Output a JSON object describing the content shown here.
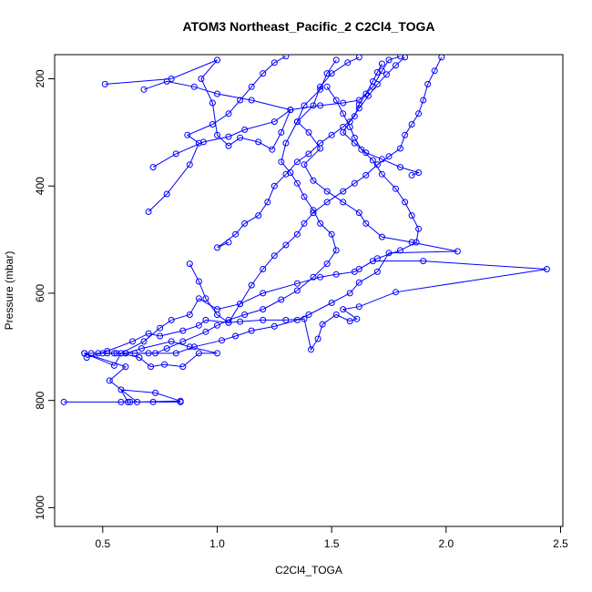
{
  "chart_data": {
    "type": "line",
    "title": "ATOM3 Northeast_Pacific_2 C2Cl4_TOGA",
    "xlabel": "C2Cl4_TOGA",
    "ylabel": "Pressure (mbar)",
    "xlim": [
      0.29,
      2.51
    ],
    "ylim": [
      1035,
      155
    ],
    "y_reversed": true,
    "x_ticks": [
      0.5,
      1.0,
      1.5,
      2.0,
      2.5
    ],
    "x_tick_labels": [
      "0.5",
      "1.0",
      "1.5",
      "2.0",
      "2.5"
    ],
    "y_ticks": [
      200,
      400,
      600,
      800,
      1000
    ],
    "y_tick_labels": [
      "200",
      "400",
      "600",
      "800",
      "1000"
    ],
    "grid": false,
    "legend": "none",
    "color": "#0000ff",
    "series": [
      {
        "points": [
          [
            0.33,
            803
          ],
          [
            0.58,
            803
          ],
          [
            0.62,
            803
          ],
          [
            0.72,
            803
          ],
          [
            0.84,
            803
          ],
          [
            0.61,
            803
          ],
          [
            0.58,
            780
          ],
          [
            0.73,
            786
          ],
          [
            0.84,
            801
          ],
          [
            0.65,
            803
          ],
          [
            0.53,
            763
          ],
          [
            0.6,
            737
          ],
          [
            0.42,
            712
          ],
          [
            0.55,
            735
          ],
          [
            0.58,
            712
          ],
          [
            0.66,
            720
          ],
          [
            0.71,
            737
          ],
          [
            0.77,
            733
          ],
          [
            0.85,
            737
          ],
          [
            0.92,
            712
          ],
          [
            1.0,
            712
          ],
          [
            0.88,
            700
          ],
          [
            0.8,
            690
          ],
          [
            0.67,
            703
          ],
          [
            0.6,
            712
          ],
          [
            0.55,
            712
          ],
          [
            0.48,
            712
          ],
          [
            0.42,
            712
          ],
          [
            0.43,
            720
          ],
          [
            0.52,
            708
          ],
          [
            0.63,
            690
          ],
          [
            0.7,
            675
          ],
          [
            0.75,
            680
          ],
          [
            0.85,
            670
          ],
          [
            0.92,
            660
          ],
          [
            0.95,
            650
          ],
          [
            1.05,
            655
          ],
          [
            1.1,
            653
          ],
          [
            1.2,
            650
          ],
          [
            1.3,
            650
          ],
          [
            1.38,
            648
          ],
          [
            1.41,
            705
          ],
          [
            1.44,
            685
          ],
          [
            1.46,
            658
          ],
          [
            1.52,
            640
          ],
          [
            1.58,
            652
          ],
          [
            1.61,
            648
          ],
          [
            1.55,
            630
          ],
          [
            1.62,
            625
          ],
          [
            1.78,
            598
          ],
          [
            2.44,
            555
          ],
          [
            1.9,
            540
          ],
          [
            1.68,
            540
          ],
          [
            1.6,
            560
          ],
          [
            1.52,
            565
          ],
          [
            1.45,
            570
          ],
          [
            1.35,
            582
          ],
          [
            1.2,
            600
          ],
          [
            1.1,
            620
          ],
          [
            1.0,
            630
          ],
          [
            0.92,
            610
          ],
          [
            0.88,
            640
          ],
          [
            0.8,
            650
          ],
          [
            0.75,
            665
          ],
          [
            0.68,
            690
          ],
          [
            0.58,
            712
          ],
          [
            0.5,
            712
          ],
          [
            0.45,
            712
          ]
        ]
      },
      {
        "points": [
          [
            0.6,
            712
          ],
          [
            0.7,
            712
          ],
          [
            0.82,
            712
          ],
          [
            0.9,
            700
          ],
          [
            1.02,
            688
          ],
          [
            1.08,
            680
          ],
          [
            1.15,
            670
          ],
          [
            1.25,
            662
          ],
          [
            1.35,
            650
          ],
          [
            1.4,
            640
          ],
          [
            1.5,
            618
          ],
          [
            1.58,
            600
          ],
          [
            1.62,
            580
          ],
          [
            1.7,
            560
          ],
          [
            1.75,
            525
          ],
          [
            2.05,
            522
          ],
          [
            1.85,
            505
          ],
          [
            1.72,
            495
          ],
          [
            1.65,
            470
          ],
          [
            1.62,
            450
          ],
          [
            1.55,
            430
          ],
          [
            1.48,
            410
          ],
          [
            1.42,
            390
          ],
          [
            1.38,
            360
          ],
          [
            1.45,
            330
          ],
          [
            1.4,
            300
          ],
          [
            1.35,
            280
          ],
          [
            1.42,
            250
          ],
          [
            1.45,
            215
          ],
          [
            1.5,
            190
          ],
          [
            1.57,
            170
          ],
          [
            1.62,
            160
          ]
        ]
      },
      {
        "points": [
          [
            0.52,
            712
          ],
          [
            0.56,
            712
          ],
          [
            0.64,
            712
          ],
          [
            0.73,
            712
          ],
          [
            0.78,
            703
          ],
          [
            0.85,
            690
          ],
          [
            0.95,
            672
          ],
          [
            1.0,
            660
          ],
          [
            1.05,
            650
          ],
          [
            1.12,
            640
          ],
          [
            1.2,
            630
          ],
          [
            1.28,
            612
          ],
          [
            1.35,
            595
          ],
          [
            1.42,
            570
          ],
          [
            1.48,
            545
          ],
          [
            1.52,
            520
          ],
          [
            1.5,
            490
          ],
          [
            1.45,
            470
          ],
          [
            1.42,
            445
          ],
          [
            1.38,
            420
          ],
          [
            1.35,
            395
          ],
          [
            1.32,
            375
          ],
          [
            1.28,
            355
          ],
          [
            1.3,
            320
          ],
          [
            1.35,
            280
          ],
          [
            1.38,
            250
          ],
          [
            1.45,
            220
          ],
          [
            1.48,
            190
          ],
          [
            1.52,
            165
          ]
        ]
      },
      {
        "points": [
          [
            0.7,
            448
          ],
          [
            0.78,
            415
          ],
          [
            0.88,
            360
          ],
          [
            0.92,
            320
          ],
          [
            0.87,
            305
          ],
          [
            0.98,
            285
          ],
          [
            1.05,
            265
          ],
          [
            1.1,
            240
          ],
          [
            1.15,
            215
          ],
          [
            1.2,
            190
          ],
          [
            1.25,
            170
          ],
          [
            1.3,
            158
          ]
        ]
      },
      {
        "points": [
          [
            0.51,
            210
          ],
          [
            0.8,
            200
          ],
          [
            1.0,
            165
          ],
          [
            0.93,
            200
          ],
          [
            0.98,
            245
          ],
          [
            1.0,
            305
          ],
          [
            1.05,
            325
          ],
          [
            1.1,
            310
          ],
          [
            1.18,
            318
          ],
          [
            1.24,
            332
          ],
          [
            1.28,
            300
          ],
          [
            1.32,
            258
          ],
          [
            1.15,
            240
          ],
          [
            1.0,
            228
          ],
          [
            0.9,
            215
          ],
          [
            0.78,
            205
          ],
          [
            0.68,
            220
          ]
        ]
      },
      {
        "points": [
          [
            0.72,
            365
          ],
          [
            0.82,
            340
          ],
          [
            0.94,
            318
          ],
          [
            1.05,
            308
          ],
          [
            1.12,
            295
          ],
          [
            1.25,
            280
          ],
          [
            1.32,
            258
          ],
          [
            1.45,
            250
          ],
          [
            1.55,
            245
          ],
          [
            1.62,
            240
          ],
          [
            1.68,
            215
          ],
          [
            1.72,
            185
          ],
          [
            1.75,
            165
          ],
          [
            1.8,
            158
          ]
        ]
      },
      {
        "points": [
          [
            0.88,
            545
          ],
          [
            0.92,
            578
          ],
          [
            0.95,
            610
          ],
          [
            1.0,
            640
          ],
          [
            1.05,
            655
          ],
          [
            1.1,
            620
          ],
          [
            1.15,
            585
          ],
          [
            1.2,
            555
          ],
          [
            1.25,
            530
          ],
          [
            1.3,
            510
          ],
          [
            1.35,
            490
          ],
          [
            1.38,
            470
          ],
          [
            1.42,
            450
          ],
          [
            1.48,
            430
          ],
          [
            1.55,
            410
          ],
          [
            1.6,
            395
          ],
          [
            1.65,
            380
          ],
          [
            1.7,
            360
          ],
          [
            1.75,
            345
          ],
          [
            1.8,
            330
          ],
          [
            1.82,
            305
          ],
          [
            1.85,
            285
          ],
          [
            1.88,
            265
          ],
          [
            1.9,
            240
          ],
          [
            1.92,
            210
          ],
          [
            1.95,
            185
          ],
          [
            1.98,
            160
          ]
        ]
      },
      {
        "points": [
          [
            1.05,
            505
          ],
          [
            1.0,
            515
          ],
          [
            1.08,
            490
          ],
          [
            1.12,
            470
          ],
          [
            1.18,
            455
          ],
          [
            1.22,
            430
          ],
          [
            1.25,
            400
          ],
          [
            1.3,
            378
          ],
          [
            1.35,
            355
          ],
          [
            1.4,
            340
          ],
          [
            1.45,
            320
          ],
          [
            1.5,
            305
          ],
          [
            1.55,
            290
          ],
          [
            1.6,
            270
          ],
          [
            1.62,
            248
          ],
          [
            1.65,
            228
          ],
          [
            1.68,
            205
          ],
          [
            1.7,
            188
          ],
          [
            1.72,
            172
          ]
        ]
      },
      {
        "points": [
          [
            1.48,
            215
          ],
          [
            1.52,
            240
          ],
          [
            1.55,
            265
          ],
          [
            1.58,
            290
          ],
          [
            1.6,
            310
          ],
          [
            1.63,
            332
          ],
          [
            1.68,
            352
          ],
          [
            1.72,
            378
          ],
          [
            1.78,
            405
          ],
          [
            1.82,
            430
          ],
          [
            1.85,
            455
          ],
          [
            1.88,
            480
          ],
          [
            1.87,
            505
          ],
          [
            1.8,
            520
          ],
          [
            1.7,
            535
          ],
          [
            1.62,
            555
          ]
        ]
      },
      {
        "points": [
          [
            1.85,
            380
          ],
          [
            1.88,
            375
          ],
          [
            1.8,
            365
          ],
          [
            1.72,
            350
          ],
          [
            1.65,
            338
          ],
          [
            1.6,
            320
          ],
          [
            1.55,
            300
          ],
          [
            1.58,
            280
          ],
          [
            1.62,
            255
          ],
          [
            1.66,
            232
          ],
          [
            1.7,
            210
          ],
          [
            1.74,
            192
          ],
          [
            1.78,
            175
          ],
          [
            1.82,
            160
          ]
        ]
      }
    ]
  }
}
